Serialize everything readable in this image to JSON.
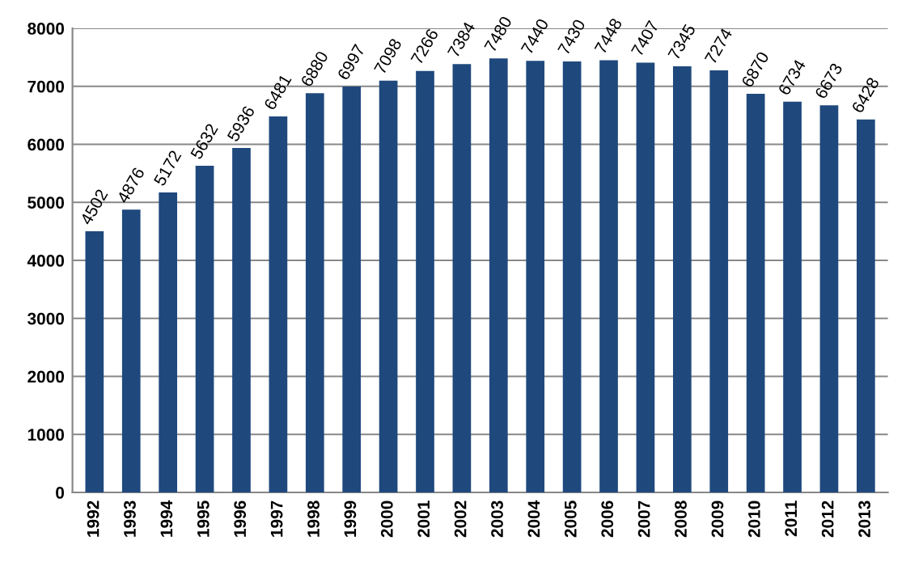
{
  "chart_data": {
    "type": "bar",
    "categories": [
      "1992",
      "1993",
      "1994",
      "1995",
      "1996",
      "1997",
      "1998",
      "1999",
      "2000",
      "2001",
      "2002",
      "2003",
      "2004",
      "2005",
      "2006",
      "2007",
      "2008",
      "2009",
      "2010",
      "2011",
      "2012",
      "2013"
    ],
    "values": [
      4502,
      4876,
      5172,
      5632,
      5936,
      6481,
      6880,
      6997,
      7098,
      7266,
      7384,
      7480,
      7440,
      7430,
      7448,
      7407,
      7345,
      7274,
      6870,
      6734,
      6673,
      6428
    ],
    "color": "#1f497d",
    "ylim": [
      0,
      8000
    ],
    "yticks": [
      0,
      1000,
      2000,
      3000,
      4000,
      5000,
      6000,
      7000,
      8000
    ],
    "grid": "y",
    "data_labels": true
  }
}
